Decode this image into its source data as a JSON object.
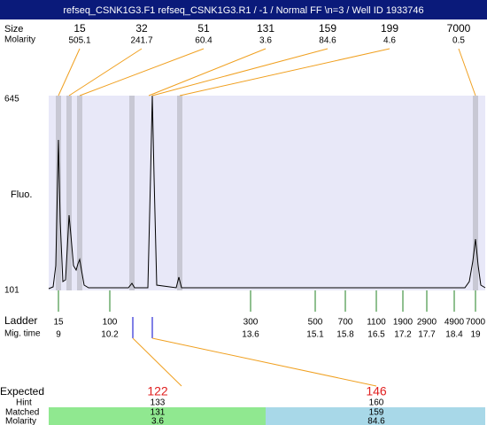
{
  "title": "refseq_CSNK1G3.F1  refseq_CSNK1G3.R1 / -1 / Normal FF \\n=3 / Well ID 1933746",
  "peak_table": {
    "row_labels": [
      "Size",
      "Molarity"
    ],
    "sizes": [
      "15",
      "32",
      "51",
      "131",
      "159",
      "199",
      "7000"
    ],
    "molarities": [
      "505.1",
      "241.7",
      "60.4",
      "3.6",
      "84.6",
      "4.6",
      "0.5"
    ]
  },
  "y_axis": {
    "label": "Fluo.",
    "max": "645",
    "min": "101"
  },
  "ladder": {
    "row_labels": [
      "Ladder",
      "Mig. time"
    ],
    "sizes": [
      "15",
      "100",
      "300",
      "500",
      "700",
      "1100",
      "1900",
      "2900",
      "4900",
      "7000"
    ],
    "mig_times": [
      "9",
      "10.2",
      "13.6",
      "15.1",
      "15.8",
      "16.5",
      "17.2",
      "17.7",
      "18.4",
      "19"
    ]
  },
  "expected": {
    "label": "Expected",
    "hint_label": "Hint",
    "matched_label": "Matched",
    "molarity_label": "Molarity",
    "rows": [
      {
        "expected": "122",
        "hint": "133",
        "matched": "131",
        "molarity": "3.6"
      },
      {
        "expected": "146",
        "hint": "160",
        "matched": "159",
        "molarity": "84.6"
      }
    ]
  }
}
